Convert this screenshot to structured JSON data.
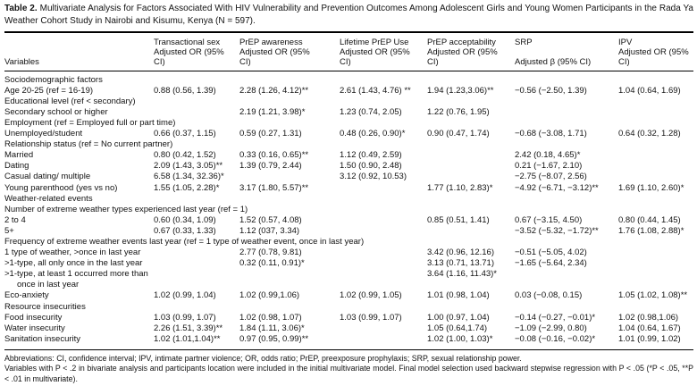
{
  "title": {
    "label": "Table 2.",
    "text": "Multivariate Analysis for Factors Associated With HIV Vulnerability and Prevention Outcomes Among Adolescent Girls and Young Women Participants in the Rada Ya Weather Cohort Study in Nairobi and Kisumu, Kenya (N = 597)."
  },
  "table": {
    "variables_header": "Variables",
    "columns": [
      {
        "name": "Transactional sex",
        "sub": "Adjusted OR (95% CI)"
      },
      {
        "name": "PrEP awareness",
        "sub": "Adjusted OR (95% CI)"
      },
      {
        "name": "Lifetime PrEP Use",
        "sub": "Adjusted OR (95% CI)"
      },
      {
        "name": "PrEP acceptability",
        "sub": "Adjusted OR (95% CI)"
      },
      {
        "name": "SRP",
        "sub": "Adjusted β (95% CI)"
      },
      {
        "name": "IPV",
        "sub": "Adjusted OR (95% CI)"
      }
    ],
    "rows": [
      {
        "type": "section",
        "label": "Sociodemographic factors"
      },
      {
        "type": "row",
        "label": "Age 20-25 (ref = 16-19)",
        "values": [
          "0.88 (0.56, 1.39)",
          "2.28 (1.26, 4.12)**",
          "2.61 (1.43, 4.76) **",
          "1.94 (1.23,3.06)**",
          "−0.56 (−2.50, 1.39)",
          "1.04 (0.64, 1.69)"
        ]
      },
      {
        "type": "row",
        "label": "Educational level (ref < secondary)",
        "values": [
          "",
          "",
          "",
          "",
          "",
          ""
        ]
      },
      {
        "type": "row",
        "label": "Secondary school or higher",
        "values": [
          "",
          "2.19 (1.21, 3.98)*",
          "1.23 (0.74, 2.05)",
          "1.22 (0.76, 1.95)",
          "",
          ""
        ]
      },
      {
        "type": "row",
        "label": "Employment (ref = Employed full or part time)",
        "values": [
          "",
          "",
          "",
          "",
          "",
          ""
        ]
      },
      {
        "type": "row",
        "label": "Unemployed/student",
        "values": [
          "0.66 (0.37, 1.15)",
          "0.59 (0.27, 1.31)",
          "0.48 (0.26, 0.90)*",
          "0.90 (0.47, 1.74)",
          "−0.68 (−3.08, 1.71)",
          "0.64 (0.32, 1.28)"
        ]
      },
      {
        "type": "row",
        "label": "Relationship status (ref = No current partner)",
        "values": [
          "",
          "",
          "",
          "",
          "",
          ""
        ]
      },
      {
        "type": "row",
        "label": "Married",
        "values": [
          "0.80 (0.42, 1.52)",
          "0.33 (0.16, 0.65)**",
          "1.12 (0.49, 2.59)",
          "",
          "2.42 (0.18, 4.65)*",
          ""
        ]
      },
      {
        "type": "row",
        "label": "Dating",
        "values": [
          "2.09 (1.43, 3.05)**",
          "1.39 (0.79, 2.44)",
          "1.50 (0.90, 2.48)",
          "",
          "0.21 (−1.67, 2.10)",
          ""
        ]
      },
      {
        "type": "row",
        "label": "Casual dating/ multiple",
        "values": [
          "6.58 (1.34, 32.36)*",
          "",
          "3.12 (0.92, 10.53)",
          "",
          "−2.75 (−8.07, 2.56)",
          ""
        ]
      },
      {
        "type": "row",
        "label": "Young parenthood (yes vs no)",
        "values": [
          "1.55 (1.05, 2.28)*",
          "3.17 (1.80, 5.57)**",
          "",
          "1.77 (1.10, 2.83)*",
          "−4.92 (−6.71, −3.12)**",
          "1.69 (1.10, 2.60)*"
        ]
      },
      {
        "type": "section",
        "label": "Weather-related events"
      },
      {
        "type": "row",
        "label": "Number of extreme weather types experienced last year (ref = 1)",
        "values": [
          "",
          "",
          "",
          "",
          "",
          ""
        ]
      },
      {
        "type": "row",
        "label": "2 to 4",
        "values": [
          "0.60 (0.34, 1.09)",
          "1.52 (0.57, 4.08)",
          "",
          "0.85 (0.51, 1.41)",
          "0.67 (−3.15, 4.50)",
          "0.80 (0.44, 1.45)"
        ]
      },
      {
        "type": "row",
        "label": "5+",
        "values": [
          "0.67 (0.33, 1.33)",
          "1.12 (037, 3.34)",
          "",
          "",
          "−3.52 (−5.32, −1.72)**",
          "1.76 (1.08, 2.88)*"
        ]
      },
      {
        "type": "row",
        "label": "Frequency of extreme weather events last year (ref = 1 type of weather event, once in last year)",
        "values": [
          "",
          "",
          "",
          "",
          "",
          ""
        ]
      },
      {
        "type": "row",
        "label": "1 type of weather, >once in last year",
        "values": [
          "",
          "2.77 (0.78, 9.81)",
          "",
          "3.42 (0.96, 12.16)",
          "−0.51 (−5.05, 4.02)",
          ""
        ]
      },
      {
        "type": "row",
        "label": ">1-type, all only once in the last year",
        "values": [
          "",
          "0.32 (0.11, 0.91)*",
          "",
          "3.13 (0.71, 13.71)",
          "−1.65 (−5.64, 2.34)",
          ""
        ]
      },
      {
        "type": "row",
        "label": ">1-type, at least 1 occurred more than\nonce in last year",
        "values": [
          "",
          "",
          "",
          "3.64 (1.16, 11.43)*",
          "",
          ""
        ]
      },
      {
        "type": "row",
        "label": "Eco-anxiety",
        "values": [
          "1.02 (0.99, 1.04)",
          "1.02 (0.99,1.06)",
          "1.02 (0.99, 1.05)",
          "1.01 (0.98, 1.04)",
          "0.03 (−0.08, 0.15)",
          "1.05 (1.02, 1.08)**"
        ]
      },
      {
        "type": "section",
        "label": "Resource insecurities"
      },
      {
        "type": "row",
        "label": "Food insecurity",
        "values": [
          "1.03 (0.99, 1.07)",
          "1.02 (0.98, 1.07)",
          "1.03 (0.99, 1.07)",
          "1.00 (0.97, 1.04)",
          "−0.14 (−0.27, −0.01)*",
          "1.02 (0.98,1.06)"
        ]
      },
      {
        "type": "row",
        "label": "Water insecurity",
        "values": [
          "2.26 (1.51, 3.39)**",
          "1.84 (1.11, 3.06)*",
          "",
          "1.05 (0.64,1.74)",
          "−1.09 (−2.99, 0.80)",
          "1.04 (0.64, 1.67)"
        ]
      },
      {
        "type": "row",
        "label": "Sanitation insecurity",
        "values": [
          "1.02 (1.01,1.04)**",
          "0.97 (0.95, 0.99)**",
          "",
          "1.02 (1.00, 1.03)*",
          "−0.08 (−0.16, −0.02)*",
          "1.01 (0.99, 1.02)"
        ]
      }
    ]
  },
  "footnotes": [
    "Abbreviations: CI, confidence interval; IPV, intimate partner violence; OR, odds ratio; PrEP, preexposure prophylaxis; SRP, sexual relationship power.",
    "Variables with P < .2 in bivariate analysis and participants location were included in the initial multivariate model. Final model selection used backward stepwise regression with P < .05 (*P < .05, **P < .01 in multivariate)."
  ]
}
